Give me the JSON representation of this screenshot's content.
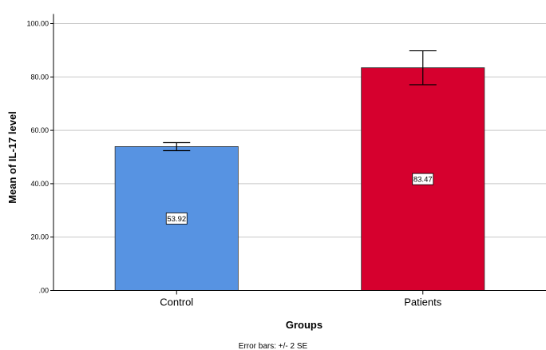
{
  "chart_data": {
    "type": "bar",
    "categories": [
      "Control",
      "Patients"
    ],
    "values": [
      53.92,
      83.47
    ],
    "value_labels": [
      "53.92",
      "83.47"
    ],
    "error_bars": [
      {
        "low": 52.4,
        "high": 55.4
      },
      {
        "low": 77.1,
        "high": 89.8
      }
    ],
    "colors": [
      "#5793E2",
      "#D6002E"
    ],
    "xlabel": "Groups",
    "ylabel": "Mean of IL-17 level",
    "ylim": [
      0,
      100
    ],
    "yticks": [
      0,
      20,
      40,
      60,
      80,
      100
    ],
    "ytick_labels": [
      ".00",
      "20.00",
      "40.00",
      "60.00",
      "80.00",
      "100.00"
    ],
    "footnote": "Error bars: +/- 2 SE",
    "grid": "horizontal"
  }
}
